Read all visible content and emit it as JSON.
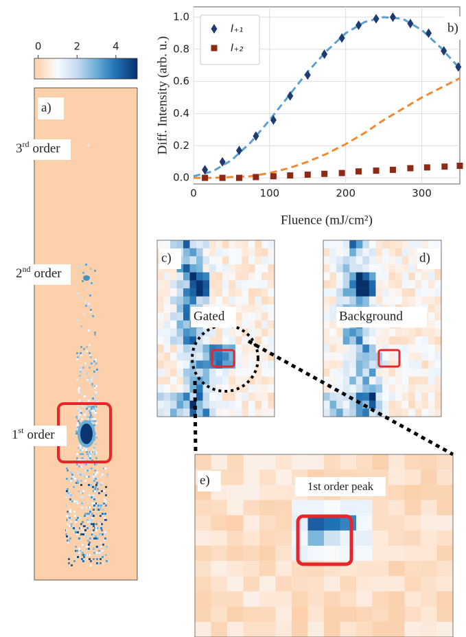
{
  "chart_data": [
    {
      "type": "heatmap",
      "xlim": [
        -0.2,
        5.1
      ],
      "xticks": [
        0,
        2,
        4
      ]
    },
    {
      "type": "line",
      "x_label": "Fluence (mJ/cm²)",
      "y_label": "Diff. Intensity (arb. u.)",
      "xlim": [
        0,
        350
      ],
      "ylim": [
        -0.038,
        1.064
      ],
      "xticks": [
        0,
        100,
        200,
        300
      ],
      "yticks": [
        {
          "value": 0,
          "label": "0.0"
        },
        {
          "value": 0.2,
          "label": "0.2"
        },
        {
          "value": 0.4,
          "label": "0.4"
        },
        {
          "value": 0.6,
          "label": "0.6"
        },
        {
          "value": 0.8,
          "label": "0.8"
        },
        {
          "value": 1,
          "label": "1.0"
        }
      ],
      "grid": true,
      "legend": "upper left",
      "series": [
        {
          "name": "I₊₁",
          "kind": "scatter",
          "marker": "diamond",
          "color": "#1f3a6e",
          "x": [
            15,
            38,
            60,
            82,
            105,
            127,
            150,
            172,
            195,
            217,
            240,
            262,
            285,
            309,
            329,
            348
          ],
          "values": [
            0.05,
            0.1,
            0.17,
            0.26,
            0.36,
            0.51,
            0.64,
            0.77,
            0.87,
            0.95,
            0.99,
            1.0,
            0.96,
            0.9,
            0.79,
            0.69
          ]
        },
        {
          "name": "I₊₂",
          "kind": "scatter",
          "marker": "square",
          "color": "#8b2a17",
          "x": [
            15,
            38,
            60,
            82,
            105,
            127,
            150,
            172,
            195,
            217,
            240,
            262,
            285,
            307,
            330,
            350
          ],
          "values": [
            0.0,
            0.0,
            0.0,
            0.005,
            0.01,
            0.015,
            0.02,
            0.025,
            0.03,
            0.04,
            0.045,
            0.05,
            0.06,
            0.065,
            0.07,
            0.075
          ]
        },
        {
          "kind": "line",
          "dashed": true,
          "color": "#5aa0d0",
          "x": [
            0,
            25,
            50,
            75,
            100,
            125,
            150,
            175,
            200,
            225,
            250,
            275,
            300,
            325,
            350
          ],
          "values": [
            0.01,
            0.04,
            0.11,
            0.22,
            0.36,
            0.51,
            0.66,
            0.79,
            0.9,
            0.97,
            1.0,
            0.99,
            0.92,
            0.81,
            0.68
          ]
        },
        {
          "kind": "line",
          "dashed": true,
          "color": "#f08a30",
          "x": [
            0,
            25,
            50,
            75,
            100,
            125,
            150,
            175,
            200,
            225,
            250,
            275,
            300,
            325,
            350
          ],
          "values": [
            0,
            0,
            0.005,
            0.01,
            0.03,
            0.06,
            0.1,
            0.15,
            0.21,
            0.28,
            0.36,
            0.43,
            0.5,
            0.56,
            0.62
          ]
        }
      ]
    }
  ],
  "panels": {
    "a": {
      "label": "a)",
      "orders": [
        {
          "num": "3",
          "sup": "rd",
          "text": "order"
        },
        {
          "num": "2",
          "sup": "nd",
          "text": "order"
        },
        {
          "num": "1",
          "sup": "st",
          "text": "order"
        }
      ]
    },
    "b": {
      "label": "b)"
    },
    "c": {
      "label": "c)",
      "text": "Gated"
    },
    "d": {
      "label": "d)",
      "text": "Background"
    },
    "e": {
      "label": "e)",
      "text": "1st order peak"
    }
  }
}
